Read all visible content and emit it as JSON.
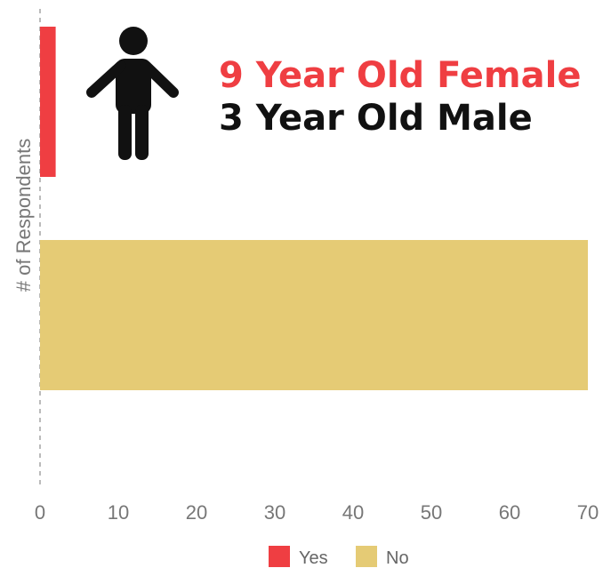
{
  "chart_data": {
    "type": "bar",
    "orientation": "horizontal",
    "categories": [
      "",
      ""
    ],
    "series": [
      {
        "name": "Yes",
        "values": [
          2,
          null
        ],
        "color": "#ef3e42"
      },
      {
        "name": "No",
        "values": [
          null,
          70
        ],
        "color": "#e5cb75"
      }
    ],
    "ylabel": "# of Respondents",
    "xlabel": "",
    "xlim": [
      0,
      70
    ],
    "xticks": [
      "0",
      "10",
      "20",
      "30",
      "40",
      "50",
      "60",
      "70"
    ],
    "grid": false,
    "legend": {
      "position": "bottom-center",
      "items": [
        {
          "label": "Yes",
          "color": "#ef3e42"
        },
        {
          "label": "No",
          "color": "#e5cb75"
        }
      ]
    },
    "annotation": {
      "line1": "9 Year Old Female",
      "line1_color": "#ef3e42",
      "line2": "3 Year Old Male",
      "line2_color": "#111111",
      "icon": "child-icon"
    }
  }
}
